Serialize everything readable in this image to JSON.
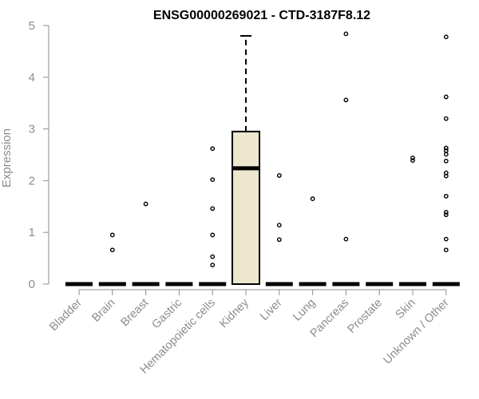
{
  "chart_data": {
    "type": "box",
    "title": "ENSG00000269021 - CTD-3187F8.12",
    "xlabel": "",
    "ylabel": "Expression",
    "ylim": [
      0,
      5
    ],
    "yticks": [
      0,
      1,
      2,
      3,
      4,
      5
    ],
    "grid": false,
    "colors": {
      "box_fill": "#ede7d0",
      "stroke": "#000000",
      "axis_text": "#8c8c8c"
    },
    "categories": [
      "Bladder",
      "Brain",
      "Breast",
      "Gastric",
      "Hematopoietic cells",
      "Kidney",
      "Liver",
      "Lung",
      "Pancreas",
      "Prostate",
      "Skin",
      "Unknown / Other"
    ],
    "boxes": [
      {
        "category": "Bladder",
        "q1": 0,
        "median": 0,
        "q3": 0,
        "whisker_low": 0,
        "whisker_high": 0,
        "outliers": []
      },
      {
        "category": "Brain",
        "q1": 0,
        "median": 0,
        "q3": 0,
        "whisker_low": 0,
        "whisker_high": 0,
        "outliers": [
          0.66,
          0.95
        ]
      },
      {
        "category": "Breast",
        "q1": 0,
        "median": 0,
        "q3": 0,
        "whisker_low": 0,
        "whisker_high": 0,
        "outliers": [
          1.55
        ]
      },
      {
        "category": "Gastric",
        "q1": 0,
        "median": 0,
        "q3": 0,
        "whisker_low": 0,
        "whisker_high": 0,
        "outliers": []
      },
      {
        "category": "Hematopoietic cells",
        "q1": 0,
        "median": 0,
        "q3": 0,
        "whisker_low": 0,
        "whisker_high": 0,
        "outliers": [
          0.37,
          0.53,
          0.95,
          1.46,
          2.02,
          2.62
        ]
      },
      {
        "category": "Kidney",
        "q1": 0,
        "median": 2.24,
        "q3": 2.95,
        "whisker_low": 0,
        "whisker_high": 4.8,
        "outliers": []
      },
      {
        "category": "Liver",
        "q1": 0,
        "median": 0,
        "q3": 0,
        "whisker_low": 0,
        "whisker_high": 0,
        "outliers": [
          0.86,
          1.14,
          2.1
        ]
      },
      {
        "category": "Lung",
        "q1": 0,
        "median": 0,
        "q3": 0,
        "whisker_low": 0,
        "whisker_high": 0,
        "outliers": [
          1.65
        ]
      },
      {
        "category": "Pancreas",
        "q1": 0,
        "median": 0,
        "q3": 0,
        "whisker_low": 0,
        "whisker_high": 0,
        "outliers": [
          0.87,
          3.56,
          4.84
        ]
      },
      {
        "category": "Prostate",
        "q1": 0,
        "median": 0,
        "q3": 0,
        "whisker_low": 0,
        "whisker_high": 0,
        "outliers": []
      },
      {
        "category": "Skin",
        "q1": 0,
        "median": 0,
        "q3": 0,
        "whisker_low": 0,
        "whisker_high": 0,
        "outliers": [
          2.39,
          2.44
        ]
      },
      {
        "category": "Unknown / Other",
        "q1": 0,
        "median": 0,
        "q3": 0,
        "whisker_low": 0,
        "whisker_high": 0,
        "outliers": [
          0.66,
          0.87,
          1.34,
          1.39,
          1.7,
          2.09,
          2.15,
          2.38,
          2.51,
          2.58,
          2.63,
          3.2,
          3.62,
          4.78
        ]
      }
    ]
  }
}
